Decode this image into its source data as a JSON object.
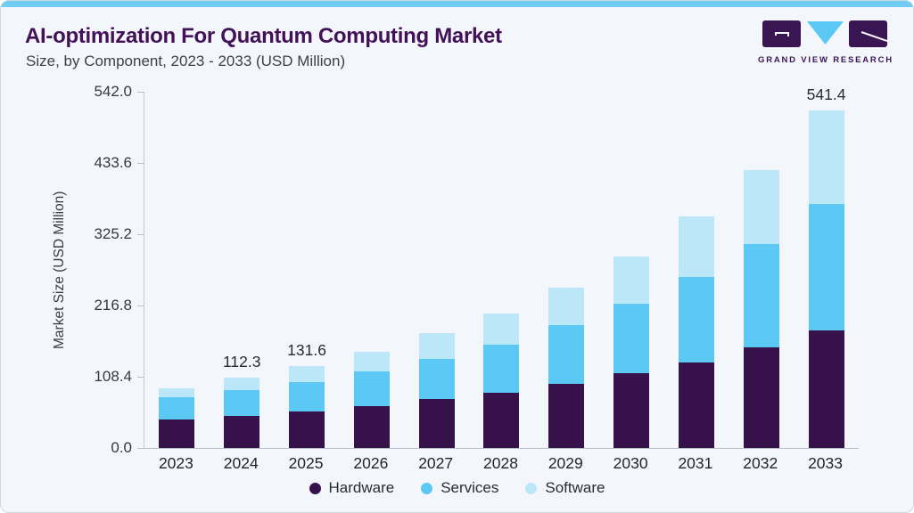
{
  "header": {
    "title": "AI-optimization For Quantum Computing Market",
    "subtitle": "Size, by Component, 2023 - 2033 (USD Million)"
  },
  "logo": {
    "brand": "GRAND VIEW RESEARCH"
  },
  "chart_data": {
    "type": "bar",
    "stacked": true,
    "title": "AI-optimization For Quantum Computing Market Size, by Component, 2023 - 2033 (USD Million)",
    "categories": [
      "2023",
      "2024",
      "2025",
      "2026",
      "2027",
      "2028",
      "2029",
      "2030",
      "2031",
      "2032",
      "2033"
    ],
    "series": [
      {
        "name": "Hardware",
        "color": "#36114A",
        "values": [
          46.4,
          51.0,
          59.2,
          67.9,
          78.3,
          89.3,
          103.6,
          119.7,
          137.9,
          161.7,
          189.3
        ]
      },
      {
        "name": "Services",
        "color": "#5CC8F4",
        "values": [
          35.3,
          41.3,
          46.1,
          55.7,
          65.3,
          77.1,
          93.9,
          112.0,
          136.7,
          165.7,
          202.8
        ]
      },
      {
        "name": "Software",
        "color": "#BBE7F8",
        "values": [
          14.8,
          20.0,
          26.3,
          31.0,
          40.4,
          50.0,
          59.4,
          76.1,
          96.6,
          119.0,
          149.3
        ]
      }
    ],
    "totals": [
      96.5,
      112.3,
      131.6,
      154.6,
      184.0,
      216.4,
      256.9,
      307.8,
      371.2,
      446.4,
      541.4
    ],
    "visible_total_labels": {
      "2024": "112.3",
      "2025": "131.6",
      "2033": "541.4"
    },
    "ylabel": "Market Size (USD Million)",
    "xlabel": "",
    "ylim": [
      0,
      542
    ],
    "ytick_labels": [
      "542.0",
      "433.6",
      "325.2",
      "216.8",
      "108.4",
      "0.0"
    ],
    "grid": false,
    "legend_position": "bottom",
    "legend": [
      "Hardware",
      "Services",
      "Software"
    ]
  }
}
